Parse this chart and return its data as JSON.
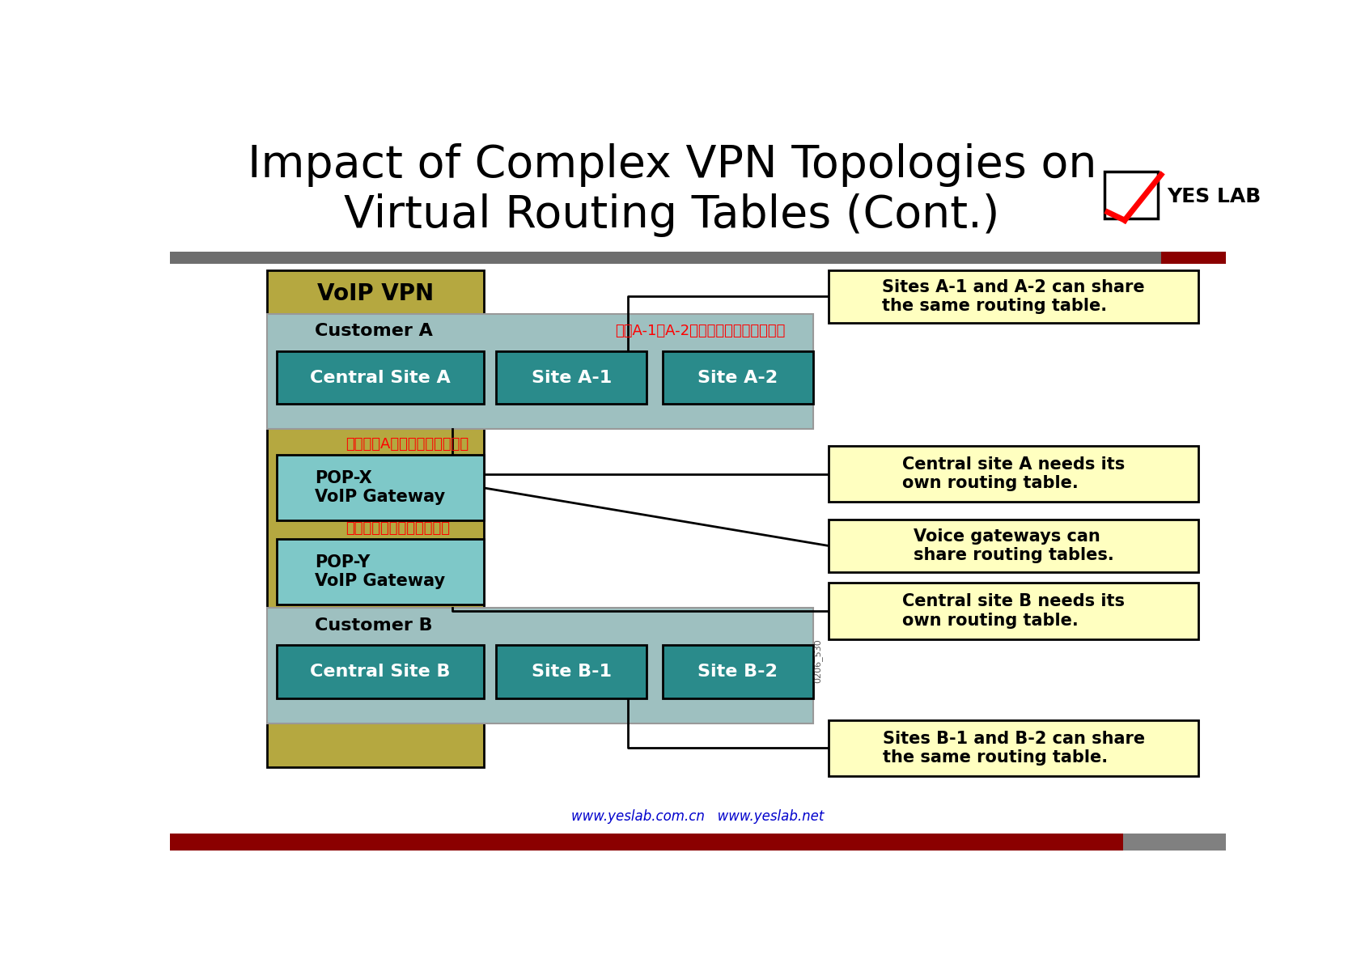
{
  "title_line1": "Impact of Complex VPN Topologies on",
  "title_line2": "Virtual Routing Tables (Cont.)",
  "bg_color": "#ffffff",
  "header_bar_color": "#6e6e6e",
  "header_bar_accent": "#8b0000",
  "footer_bar_color": "#8b0000",
  "footer_bar_accent": "#808080",
  "voip_vpn_bg": "#b5a840",
  "customer_bg": "#9ec0c0",
  "teal_box_color": "#2a8b8b",
  "light_blue_box": "#7ec8c8",
  "callout_box_color": "#ffffc0",
  "voip_label": "VoIP VPN",
  "customer_a_label": "Customer A",
  "customer_b_label": "Customer B",
  "central_site_a": "Central Site A",
  "site_a1": "Site A-1",
  "site_a2": "Site A-2",
  "pop_x": "POP-X\nVoIP Gateway",
  "pop_y": "POP-Y\nVoIP Gateway",
  "central_site_b": "Central Site B",
  "site_b1": "Site B-1",
  "site_b2": "Site B-2",
  "callout1": "Sites A-1 and A-2 can share\nthe same routing table.",
  "callout2": "Central site A needs its\nown routing table.",
  "callout3": "Voice gateways can\nshare routing tables.",
  "callout4": "Central site B needs its\nown routing table.",
  "callout5": "Sites B-1 and B-2 can share\nthe same routing table.",
  "chinese1": "站点A-1和A-2可以共享相同的路由表。",
  "chinese2": "中心站点A需要自己的路由表。",
  "chinese3": "语音网关可以共享路由表。",
  "url_text": "www.yeslab.com.cn   www.yeslab.net",
  "yes_lab": "YES LAB",
  "watermark": "0206_530"
}
